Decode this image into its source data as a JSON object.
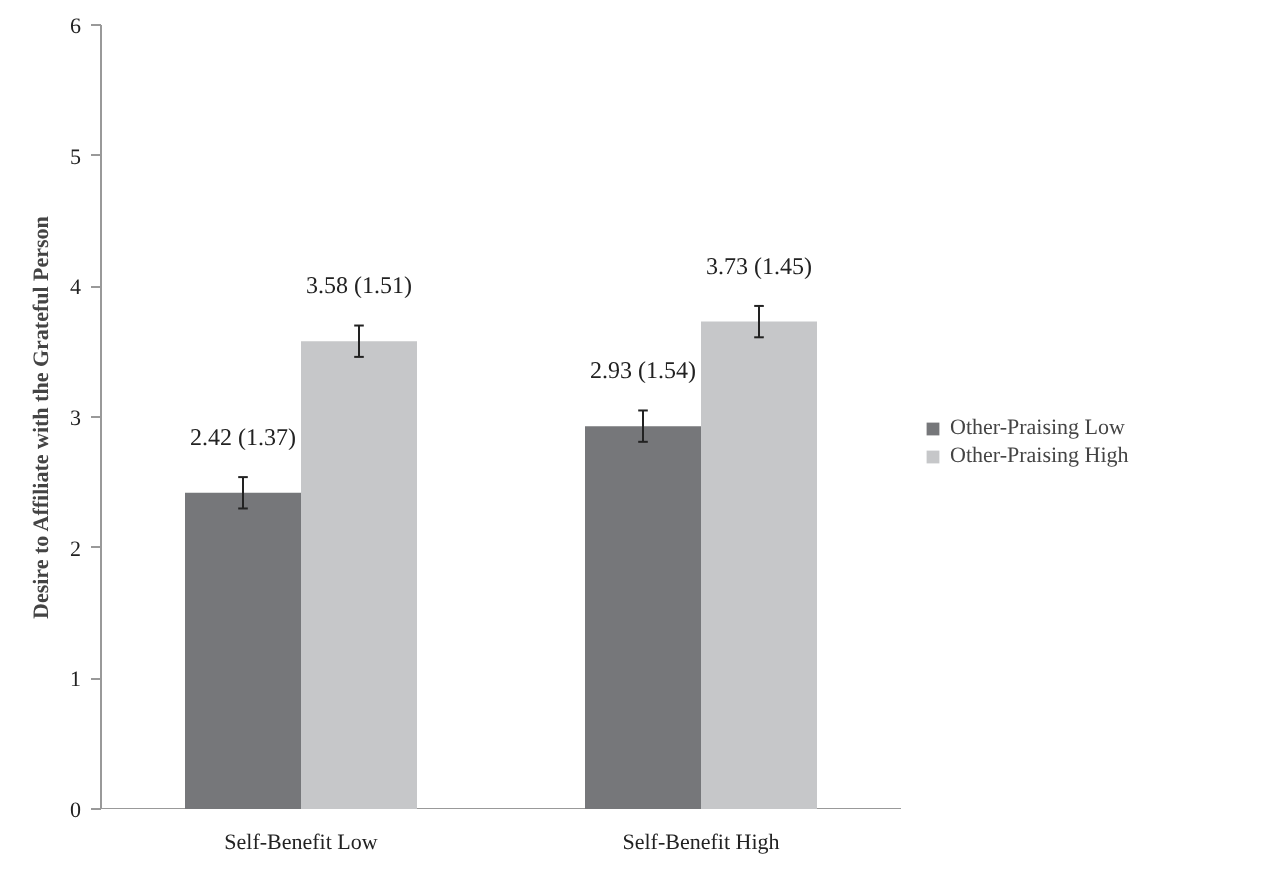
{
  "chart_data": {
    "type": "bar",
    "ylabel": "Desire to Affiliate with the Grateful Person",
    "categories": [
      "Self-Benefit Low",
      "Self-Benefit High"
    ],
    "series": [
      {
        "name": "Other-Praising Low",
        "color": "#76777a",
        "values": [
          2.42,
          2.93
        ],
        "errors": [
          0.12,
          0.12
        ],
        "value_labels": [
          "2.42 (1.37)",
          "2.93 (1.54)"
        ]
      },
      {
        "name": "Other-Praising High",
        "color": "#c6c7c9",
        "values": [
          3.58,
          3.73
        ],
        "errors": [
          0.12,
          0.12
        ],
        "value_labels": [
          "3.58 (1.51)",
          "3.73 (1.45)"
        ]
      }
    ],
    "ylim": [
      0,
      6
    ],
    "yticks": [
      0,
      1,
      2,
      3,
      4,
      5,
      6
    ],
    "grid": false,
    "legend": "right"
  }
}
